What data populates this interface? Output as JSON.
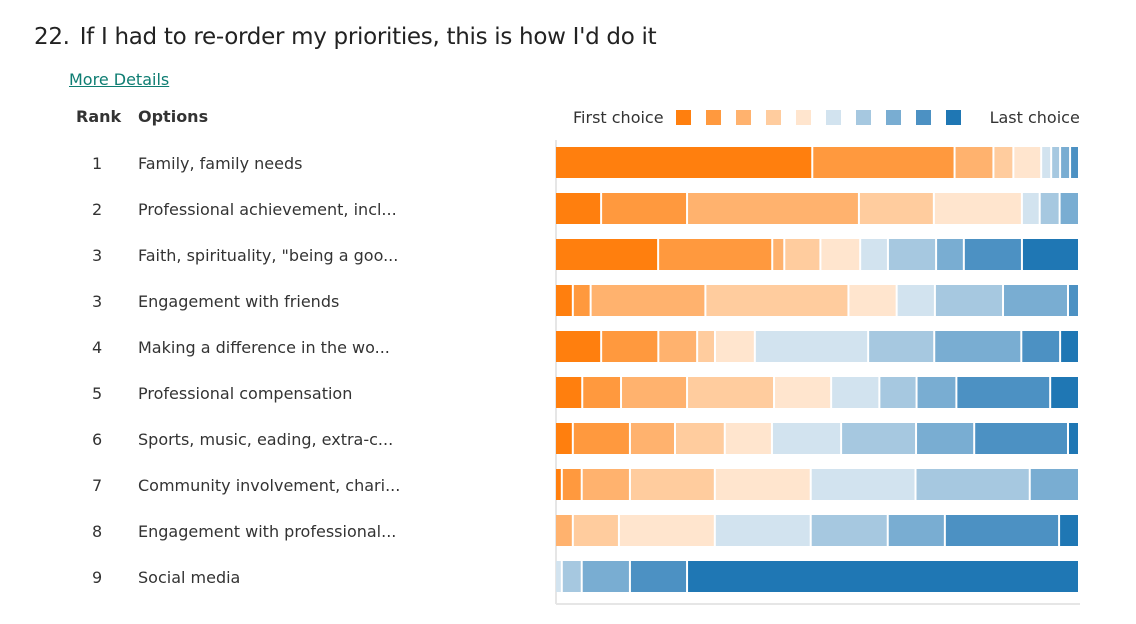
{
  "question": {
    "number": "22.",
    "title": "If I had to re-order my priorities, this is how I'd do it",
    "more_details_label": "More Details"
  },
  "table_headers": {
    "rank": "Rank",
    "options": "Options"
  },
  "legend": {
    "first_label": "First choice",
    "last_label": "Last choice",
    "colors": [
      "#ff7f0e",
      "#ff993e",
      "#ffb26e",
      "#ffcc9e",
      "#ffe5ce",
      "#d2e3ef",
      "#a6c8e0",
      "#79add2",
      "#4c91c3",
      "#1f77b4"
    ]
  },
  "rows": [
    {
      "rank": "1",
      "option": "Family, family needs"
    },
    {
      "rank": "2",
      "option": "Professional achievement, incl..."
    },
    {
      "rank": "3",
      "option": "Faith, spirituality, \"being a goo..."
    },
    {
      "rank": "3",
      "option": "Engagement with friends"
    },
    {
      "rank": "4",
      "option": "Making a difference in the wo..."
    },
    {
      "rank": "5",
      "option": "Professional compensation"
    },
    {
      "rank": "6",
      "option": "Sports, music, eading, extra-c..."
    },
    {
      "rank": "7",
      "option": "Community involvement, chari..."
    },
    {
      "rank": "8",
      "option": "Engagement with professional..."
    },
    {
      "rank": "9",
      "option": "Social media"
    }
  ],
  "chart_data": {
    "type": "bar",
    "orientation": "horizontal-stacked-100",
    "title": "If I had to re-order my priorities, this is how I'd do it",
    "categories": [
      "Family, family needs",
      "Professional achievement, incl...",
      "Faith, spirituality, \"being a goo...",
      "Engagement with friends",
      "Making a difference in the wo...",
      "Professional compensation",
      "Sports, music, eading, extra-c...",
      "Community involvement, chari...",
      "Engagement with professional...",
      "Social media"
    ],
    "legend": [
      "First choice",
      "2",
      "3",
      "4",
      "5",
      "6",
      "7",
      "8",
      "9",
      "Last choice"
    ],
    "legend_position": "top-right",
    "units": "percent of respondents (estimated)",
    "series": [
      {
        "name": "choice 1",
        "values": [
          49.0,
          8.8,
          19.7,
          3.4,
          8.8,
          5.2,
          3.4,
          1.3,
          0.0,
          0.0
        ]
      },
      {
        "name": "choice 2",
        "values": [
          27.1,
          16.4,
          21.8,
          3.4,
          10.9,
          7.4,
          10.9,
          3.8,
          0.0,
          0.0
        ]
      },
      {
        "name": "choice 3",
        "values": [
          7.4,
          32.8,
          2.3,
          21.9,
          7.4,
          12.6,
          8.6,
          9.2,
          3.4,
          0.0
        ]
      },
      {
        "name": "choice 4",
        "values": [
          3.8,
          14.3,
          6.9,
          27.3,
          3.4,
          16.6,
          9.5,
          16.2,
          8.8,
          0.0
        ]
      },
      {
        "name": "choice 5",
        "values": [
          5.3,
          16.8,
          7.6,
          9.2,
          7.6,
          10.9,
          9.0,
          18.3,
          18.3,
          0.0
        ]
      },
      {
        "name": "choice 6",
        "values": [
          1.9,
          3.4,
          5.3,
          7.3,
          21.6,
          9.2,
          13.2,
          20.0,
          18.3,
          1.3
        ]
      },
      {
        "name": "choice 7",
        "values": [
          1.7,
          3.8,
          9.2,
          13.0,
          12.6,
          7.1,
          14.3,
          21.8,
          14.7,
          3.8
        ]
      },
      {
        "name": "choice 8",
        "values": [
          1.9,
          3.7,
          5.3,
          12.4,
          16.6,
          7.6,
          11.1,
          9.4,
          10.9,
          9.2
        ]
      },
      {
        "name": "choice 9",
        "values": [
          1.7,
          0.0,
          11.1,
          2.1,
          7.4,
          17.9,
          17.9,
          0.0,
          21.8,
          10.9
        ]
      },
      {
        "name": "choice 10",
        "values": [
          0.0,
          0.0,
          10.9,
          0.0,
          3.6,
          5.5,
          2.1,
          0.0,
          3.8,
          74.8
        ]
      }
    ]
  }
}
